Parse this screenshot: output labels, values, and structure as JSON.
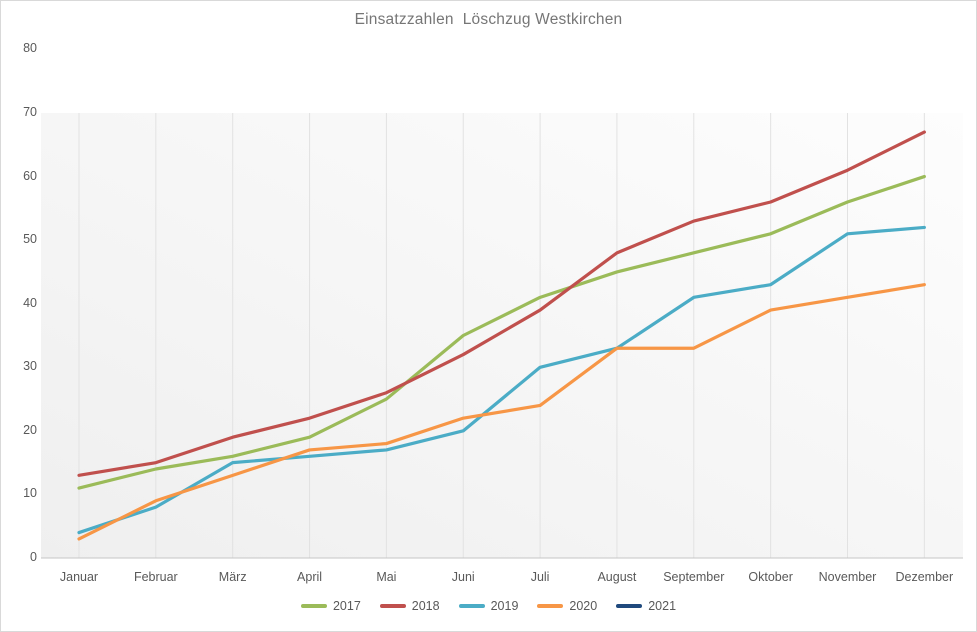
{
  "palette": {
    "grid": "#e2e2e2",
    "axis_line": "#c6c6c6",
    "tick_label": "#595959",
    "title": "#767676",
    "plot_fill_light": "#fdfdfd",
    "plot_fill_dark": "#efefef",
    "frame_border": "#d9d9d9"
  },
  "chart_data": {
    "type": "line",
    "title": "Einsatzzahlen  Löschzug Westkirchen",
    "categories": [
      "Januar",
      "Februar",
      "März",
      "April",
      "Mai",
      "Juni",
      "Juli",
      "August",
      "September",
      "Oktober",
      "November",
      "Dezember"
    ],
    "series": [
      {
        "name": "2017",
        "color": "#9bbb59",
        "values": [
          11,
          14,
          16,
          19,
          25,
          35,
          41,
          45,
          48,
          51,
          56,
          60
        ]
      },
      {
        "name": "2018",
        "color": "#c0504d",
        "values": [
          13,
          15,
          19,
          22,
          26,
          32,
          39,
          48,
          53,
          56,
          61,
          67
        ]
      },
      {
        "name": "2019",
        "color": "#4bacc6",
        "values": [
          4,
          8,
          15,
          16,
          17,
          20,
          30,
          33,
          41,
          43,
          51,
          52
        ]
      },
      {
        "name": "2020",
        "color": "#f79646",
        "values": [
          3,
          9,
          13,
          17,
          18,
          22,
          24,
          33,
          33,
          39,
          41,
          43
        ]
      },
      {
        "name": "2021",
        "color": "#1f497d",
        "values": []
      }
    ],
    "xlabel": "",
    "ylabel": "",
    "ylim": [
      0,
      80
    ],
    "ytick_step": 10,
    "grid": "vertical-only",
    "legend_position": "bottom",
    "markers": false
  }
}
